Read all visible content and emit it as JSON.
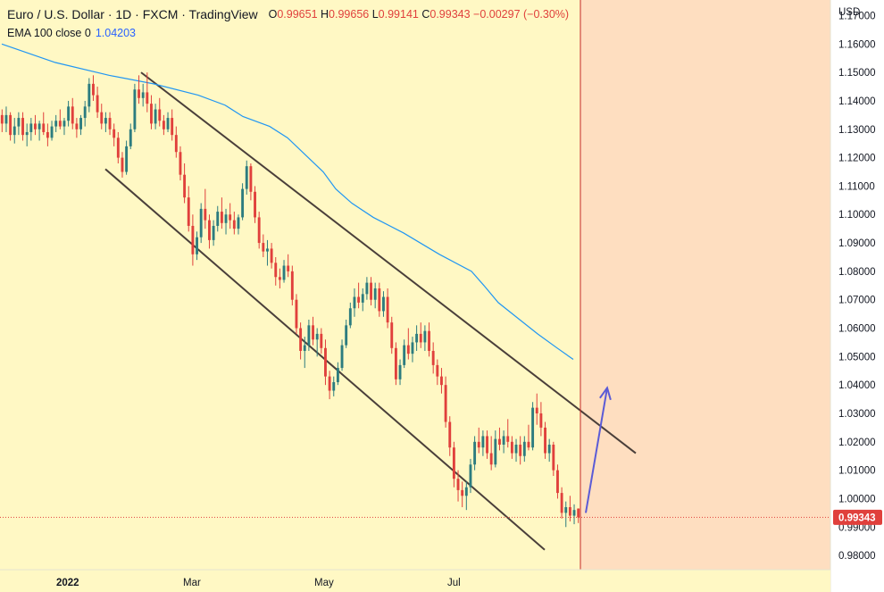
{
  "header": {
    "title": "Euro / U.S. Dollar · 1D · FXCM · TradingView",
    "ohlc": [
      {
        "k": "O",
        "v": "0.99651"
      },
      {
        "k": "H",
        "v": "0.99656"
      },
      {
        "k": "L",
        "v": "0.99141"
      },
      {
        "k": "C",
        "v": "0.99343"
      }
    ],
    "change": "−0.00297 (−0.30%)",
    "indicator_label": "EMA 100 close 0",
    "indicator_value": "1.04203"
  },
  "chart_data": {
    "type": "candlestick",
    "currency_label": "USD",
    "y_ticks": [
      "1.17000",
      "1.16000",
      "1.15000",
      "1.14000",
      "1.13000",
      "1.12000",
      "1.11000",
      "1.10000",
      "1.09000",
      "1.08000",
      "1.07000",
      "1.06000",
      "1.05000",
      "1.04000",
      "1.03000",
      "1.02000",
      "1.01000",
      "1.00000",
      "0.99000",
      "0.98000"
    ],
    "ylim": [
      0.975,
      1.1755
    ],
    "x_ticks": [
      "2022",
      "Mar",
      "May",
      "Jul"
    ],
    "last_price": "0.99343",
    "last_price_value": 0.99343,
    "ema_line": [
      [
        0,
        1.16
      ],
      [
        30,
        1.1535
      ],
      [
        60,
        1.149
      ],
      [
        85,
        1.146
      ],
      [
        110,
        1.142
      ],
      [
        125,
        1.1385
      ],
      [
        135,
        1.1345
      ],
      [
        150,
        1.131
      ],
      [
        160,
        1.127
      ],
      [
        170,
        1.121
      ],
      [
        180,
        1.115
      ],
      [
        187,
        1.109
      ],
      [
        196,
        1.104
      ],
      [
        208,
        1.099
      ],
      [
        225,
        1.0935
      ],
      [
        245,
        1.086
      ],
      [
        263,
        1.08
      ],
      [
        270,
        1.075
      ],
      [
        278,
        1.069
      ],
      [
        290,
        1.063
      ],
      [
        300,
        1.058
      ],
      [
        311,
        1.053
      ],
      [
        320,
        1.049
      ]
    ],
    "colors": {
      "up": "#2c7c7f",
      "down": "#e0403c",
      "ema": "#2196f3",
      "arrow": "#5b5bd6",
      "channel": "#4a3f3a"
    },
    "trend_lines": [
      {
        "name": "upper",
        "from": [
          78,
          1.15
        ],
        "to": [
          355,
          1.016
        ]
      },
      {
        "name": "lower",
        "from": [
          58,
          1.116
        ],
        "to": [
          304,
          0.982
        ]
      }
    ],
    "projection_arrow": {
      "from": [
        327,
        0.995
      ],
      "to": [
        339,
        1.039
      ]
    },
    "candles": [
      {
        "o": 1.135,
        "h": 1.137,
        "l": 1.129,
        "c": 1.132
      },
      {
        "o": 1.132,
        "h": 1.138,
        "l": 1.129,
        "c": 1.135
      },
      {
        "o": 1.135,
        "h": 1.136,
        "l": 1.126,
        "c": 1.128
      },
      {
        "o": 1.128,
        "h": 1.134,
        "l": 1.125,
        "c": 1.131
      },
      {
        "o": 1.131,
        "h": 1.136,
        "l": 1.128,
        "c": 1.134
      },
      {
        "o": 1.134,
        "h": 1.136,
        "l": 1.126,
        "c": 1.128
      },
      {
        "o": 1.128,
        "h": 1.132,
        "l": 1.124,
        "c": 1.129
      },
      {
        "o": 1.129,
        "h": 1.134,
        "l": 1.126,
        "c": 1.132
      },
      {
        "o": 1.132,
        "h": 1.135,
        "l": 1.128,
        "c": 1.13
      },
      {
        "o": 1.13,
        "h": 1.133,
        "l": 1.126,
        "c": 1.132
      },
      {
        "o": 1.132,
        "h": 1.136,
        "l": 1.128,
        "c": 1.129
      },
      {
        "o": 1.129,
        "h": 1.132,
        "l": 1.124,
        "c": 1.127
      },
      {
        "o": 1.127,
        "h": 1.133,
        "l": 1.126,
        "c": 1.131
      },
      {
        "o": 1.131,
        "h": 1.135,
        "l": 1.129,
        "c": 1.133
      },
      {
        "o": 1.133,
        "h": 1.137,
        "l": 1.13,
        "c": 1.131
      },
      {
        "o": 1.131,
        "h": 1.134,
        "l": 1.128,
        "c": 1.133
      },
      {
        "o": 1.133,
        "h": 1.14,
        "l": 1.131,
        "c": 1.138
      },
      {
        "o": 1.138,
        "h": 1.141,
        "l": 1.13,
        "c": 1.132
      },
      {
        "o": 1.132,
        "h": 1.134,
        "l": 1.127,
        "c": 1.13
      },
      {
        "o": 1.13,
        "h": 1.135,
        "l": 1.128,
        "c": 1.134
      },
      {
        "o": 1.134,
        "h": 1.14,
        "l": 1.131,
        "c": 1.138
      },
      {
        "o": 1.138,
        "h": 1.148,
        "l": 1.136,
        "c": 1.146
      },
      {
        "o": 1.146,
        "h": 1.149,
        "l": 1.14,
        "c": 1.142
      },
      {
        "o": 1.142,
        "h": 1.145,
        "l": 1.134,
        "c": 1.136
      },
      {
        "o": 1.136,
        "h": 1.139,
        "l": 1.13,
        "c": 1.132
      },
      {
        "o": 1.132,
        "h": 1.136,
        "l": 1.129,
        "c": 1.134
      },
      {
        "o": 1.134,
        "h": 1.136,
        "l": 1.128,
        "c": 1.13
      },
      {
        "o": 1.13,
        "h": 1.132,
        "l": 1.124,
        "c": 1.127
      },
      {
        "o": 1.127,
        "h": 1.129,
        "l": 1.118,
        "c": 1.12
      },
      {
        "o": 1.12,
        "h": 1.122,
        "l": 1.113,
        "c": 1.115
      },
      {
        "o": 1.115,
        "h": 1.126,
        "l": 1.114,
        "c": 1.124
      },
      {
        "o": 1.124,
        "h": 1.132,
        "l": 1.123,
        "c": 1.13
      },
      {
        "o": 1.13,
        "h": 1.146,
        "l": 1.129,
        "c": 1.144
      },
      {
        "o": 1.144,
        "h": 1.149,
        "l": 1.139,
        "c": 1.141
      },
      {
        "o": 1.141,
        "h": 1.146,
        "l": 1.138,
        "c": 1.143
      },
      {
        "o": 1.143,
        "h": 1.15,
        "l": 1.136,
        "c": 1.139
      },
      {
        "o": 1.139,
        "h": 1.142,
        "l": 1.13,
        "c": 1.132
      },
      {
        "o": 1.132,
        "h": 1.139,
        "l": 1.13,
        "c": 1.137
      },
      {
        "o": 1.137,
        "h": 1.141,
        "l": 1.131,
        "c": 1.133
      },
      {
        "o": 1.133,
        "h": 1.135,
        "l": 1.128,
        "c": 1.13
      },
      {
        "o": 1.13,
        "h": 1.136,
        "l": 1.129,
        "c": 1.134
      },
      {
        "o": 1.134,
        "h": 1.137,
        "l": 1.126,
        "c": 1.128
      },
      {
        "o": 1.128,
        "h": 1.131,
        "l": 1.12,
        "c": 1.122
      },
      {
        "o": 1.122,
        "h": 1.124,
        "l": 1.112,
        "c": 1.114
      },
      {
        "o": 1.114,
        "h": 1.118,
        "l": 1.104,
        "c": 1.106
      },
      {
        "o": 1.106,
        "h": 1.11,
        "l": 1.094,
        "c": 1.096
      },
      {
        "o": 1.096,
        "h": 1.1,
        "l": 1.082,
        "c": 1.086
      },
      {
        "o": 1.086,
        "h": 1.094,
        "l": 1.084,
        "c": 1.092
      },
      {
        "o": 1.092,
        "h": 1.104,
        "l": 1.09,
        "c": 1.102
      },
      {
        "o": 1.102,
        "h": 1.109,
        "l": 1.095,
        "c": 1.098
      },
      {
        "o": 1.098,
        "h": 1.1,
        "l": 1.088,
        "c": 1.091
      },
      {
        "o": 1.091,
        "h": 1.098,
        "l": 1.089,
        "c": 1.096
      },
      {
        "o": 1.096,
        "h": 1.103,
        "l": 1.094,
        "c": 1.101
      },
      {
        "o": 1.101,
        "h": 1.106,
        "l": 1.095,
        "c": 1.097
      },
      {
        "o": 1.097,
        "h": 1.102,
        "l": 1.093,
        "c": 1.1
      },
      {
        "o": 1.1,
        "h": 1.104,
        "l": 1.095,
        "c": 1.098
      },
      {
        "o": 1.098,
        "h": 1.101,
        "l": 1.093,
        "c": 1.095
      },
      {
        "o": 1.095,
        "h": 1.1,
        "l": 1.093,
        "c": 1.099
      },
      {
        "o": 1.099,
        "h": 1.111,
        "l": 1.098,
        "c": 1.109
      },
      {
        "o": 1.109,
        "h": 1.119,
        "l": 1.107,
        "c": 1.117
      },
      {
        "o": 1.117,
        "h": 1.118,
        "l": 1.105,
        "c": 1.108
      },
      {
        "o": 1.108,
        "h": 1.11,
        "l": 1.097,
        "c": 1.099
      },
      {
        "o": 1.099,
        "h": 1.101,
        "l": 1.088,
        "c": 1.09
      },
      {
        "o": 1.09,
        "h": 1.093,
        "l": 1.085,
        "c": 1.087
      },
      {
        "o": 1.087,
        "h": 1.091,
        "l": 1.082,
        "c": 1.088
      },
      {
        "o": 1.088,
        "h": 1.09,
        "l": 1.081,
        "c": 1.083
      },
      {
        "o": 1.083,
        "h": 1.085,
        "l": 1.075,
        "c": 1.078
      },
      {
        "o": 1.078,
        "h": 1.081,
        "l": 1.074,
        "c": 1.077
      },
      {
        "o": 1.077,
        "h": 1.084,
        "l": 1.076,
        "c": 1.082
      },
      {
        "o": 1.082,
        "h": 1.086,
        "l": 1.078,
        "c": 1.08
      },
      {
        "o": 1.08,
        "h": 1.082,
        "l": 1.068,
        "c": 1.07
      },
      {
        "o": 1.07,
        "h": 1.072,
        "l": 1.058,
        "c": 1.06
      },
      {
        "o": 1.06,
        "h": 1.062,
        "l": 1.049,
        "c": 1.052
      },
      {
        "o": 1.052,
        "h": 1.057,
        "l": 1.046,
        "c": 1.054
      },
      {
        "o": 1.054,
        "h": 1.063,
        "l": 1.052,
        "c": 1.061
      },
      {
        "o": 1.061,
        "h": 1.064,
        "l": 1.054,
        "c": 1.056
      },
      {
        "o": 1.056,
        "h": 1.06,
        "l": 1.05,
        "c": 1.058
      },
      {
        "o": 1.058,
        "h": 1.06,
        "l": 1.051,
        "c": 1.053
      },
      {
        "o": 1.053,
        "h": 1.056,
        "l": 1.04,
        "c": 1.043
      },
      {
        "o": 1.043,
        "h": 1.045,
        "l": 1.035,
        "c": 1.038
      },
      {
        "o": 1.038,
        "h": 1.043,
        "l": 1.036,
        "c": 1.041
      },
      {
        "o": 1.041,
        "h": 1.048,
        "l": 1.04,
        "c": 1.046
      },
      {
        "o": 1.046,
        "h": 1.056,
        "l": 1.045,
        "c": 1.054
      },
      {
        "o": 1.054,
        "h": 1.063,
        "l": 1.053,
        "c": 1.061
      },
      {
        "o": 1.061,
        "h": 1.069,
        "l": 1.06,
        "c": 1.067
      },
      {
        "o": 1.067,
        "h": 1.074,
        "l": 1.064,
        "c": 1.071
      },
      {
        "o": 1.071,
        "h": 1.076,
        "l": 1.067,
        "c": 1.069
      },
      {
        "o": 1.069,
        "h": 1.074,
        "l": 1.066,
        "c": 1.072
      },
      {
        "o": 1.072,
        "h": 1.078,
        "l": 1.07,
        "c": 1.076
      },
      {
        "o": 1.076,
        "h": 1.078,
        "l": 1.068,
        "c": 1.07
      },
      {
        "o": 1.07,
        "h": 1.076,
        "l": 1.067,
        "c": 1.074
      },
      {
        "o": 1.074,
        "h": 1.076,
        "l": 1.064,
        "c": 1.066
      },
      {
        "o": 1.066,
        "h": 1.073,
        "l": 1.064,
        "c": 1.071
      },
      {
        "o": 1.071,
        "h": 1.074,
        "l": 1.06,
        "c": 1.062
      },
      {
        "o": 1.062,
        "h": 1.064,
        "l": 1.051,
        "c": 1.053
      },
      {
        "o": 1.053,
        "h": 1.055,
        "l": 1.04,
        "c": 1.042
      },
      {
        "o": 1.042,
        "h": 1.049,
        "l": 1.04,
        "c": 1.047
      },
      {
        "o": 1.047,
        "h": 1.056,
        "l": 1.046,
        "c": 1.054
      },
      {
        "o": 1.054,
        "h": 1.06,
        "l": 1.049,
        "c": 1.051
      },
      {
        "o": 1.051,
        "h": 1.057,
        "l": 1.048,
        "c": 1.055
      },
      {
        "o": 1.055,
        "h": 1.061,
        "l": 1.052,
        "c": 1.058
      },
      {
        "o": 1.058,
        "h": 1.062,
        "l": 1.053,
        "c": 1.055
      },
      {
        "o": 1.055,
        "h": 1.061,
        "l": 1.052,
        "c": 1.059
      },
      {
        "o": 1.059,
        "h": 1.062,
        "l": 1.05,
        "c": 1.052
      },
      {
        "o": 1.052,
        "h": 1.055,
        "l": 1.044,
        "c": 1.047
      },
      {
        "o": 1.047,
        "h": 1.049,
        "l": 1.04,
        "c": 1.043
      },
      {
        "o": 1.043,
        "h": 1.046,
        "l": 1.037,
        "c": 1.04
      },
      {
        "o": 1.04,
        "h": 1.043,
        "l": 1.025,
        "c": 1.027
      },
      {
        "o": 1.027,
        "h": 1.029,
        "l": 1.015,
        "c": 1.018
      },
      {
        "o": 1.018,
        "h": 1.02,
        "l": 1.004,
        "c": 1.007
      },
      {
        "o": 1.007,
        "h": 1.01,
        "l": 0.999,
        "c": 1.003
      },
      {
        "o": 1.003,
        "h": 1.006,
        "l": 0.997,
        "c": 1.001
      },
      {
        "o": 1.001,
        "h": 1.006,
        "l": 0.996,
        "c": 1.004
      },
      {
        "o": 1.004,
        "h": 1.014,
        "l": 1.002,
        "c": 1.012
      },
      {
        "o": 1.012,
        "h": 1.022,
        "l": 1.01,
        "c": 1.02
      },
      {
        "o": 1.02,
        "h": 1.025,
        "l": 1.016,
        "c": 1.018
      },
      {
        "o": 1.018,
        "h": 1.024,
        "l": 1.015,
        "c": 1.022
      },
      {
        "o": 1.022,
        "h": 1.024,
        "l": 1.014,
        "c": 1.016
      },
      {
        "o": 1.016,
        "h": 1.022,
        "l": 1.01,
        "c": 1.012
      },
      {
        "o": 1.012,
        "h": 1.024,
        "l": 1.011,
        "c": 1.021
      },
      {
        "o": 1.021,
        "h": 1.025,
        "l": 1.017,
        "c": 1.019
      },
      {
        "o": 1.019,
        "h": 1.024,
        "l": 1.016,
        "c": 1.022
      },
      {
        "o": 1.022,
        "h": 1.028,
        "l": 1.018,
        "c": 1.02
      },
      {
        "o": 1.02,
        "h": 1.022,
        "l": 1.014,
        "c": 1.016
      },
      {
        "o": 1.016,
        "h": 1.021,
        "l": 1.013,
        "c": 1.019
      },
      {
        "o": 1.019,
        "h": 1.022,
        "l": 1.012,
        "c": 1.015
      },
      {
        "o": 1.015,
        "h": 1.022,
        "l": 1.013,
        "c": 1.02
      },
      {
        "o": 1.02,
        "h": 1.026,
        "l": 1.017,
        "c": 1.018
      },
      {
        "o": 1.018,
        "h": 1.034,
        "l": 1.017,
        "c": 1.032
      },
      {
        "o": 1.032,
        "h": 1.037,
        "l": 1.026,
        "c": 1.03
      },
      {
        "o": 1.03,
        "h": 1.034,
        "l": 1.022,
        "c": 1.025
      },
      {
        "o": 1.025,
        "h": 1.027,
        "l": 1.014,
        "c": 1.016
      },
      {
        "o": 1.016,
        "h": 1.021,
        "l": 1.013,
        "c": 1.019
      },
      {
        "o": 1.019,
        "h": 1.02,
        "l": 1.008,
        "c": 1.01
      },
      {
        "o": 1.01,
        "h": 1.012,
        "l": 1.0,
        "c": 1.002
      },
      {
        "o": 1.002,
        "h": 1.004,
        "l": 0.993,
        "c": 0.995
      },
      {
        "o": 0.995,
        "h": 0.999,
        "l": 0.99,
        "c": 0.997
      },
      {
        "o": 0.997,
        "h": 1.001,
        "l": 0.992,
        "c": 0.994
      },
      {
        "o": 0.994,
        "h": 0.998,
        "l": 0.991,
        "c": 0.996
      },
      {
        "o": 0.99651,
        "h": 0.99656,
        "l": 0.99141,
        "c": 0.99343
      }
    ]
  }
}
